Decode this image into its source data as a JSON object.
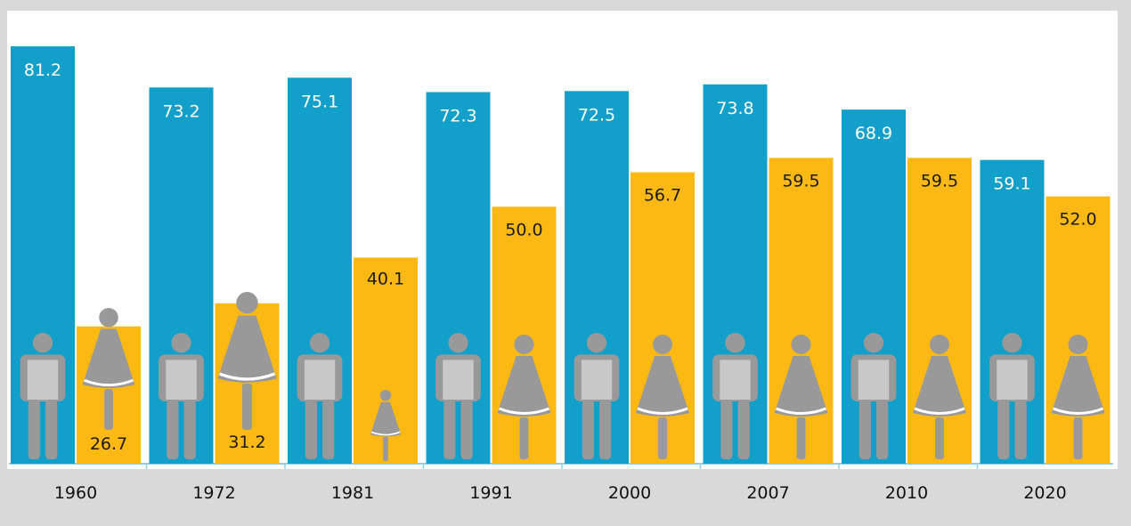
{
  "colors": {
    "male_bar": "#129fc9",
    "female_bar": "#fdb913",
    "male_label": "#ffffff",
    "female_label": "#1a1a1a",
    "icon": "#999999",
    "icon_male_fill": "#c8c8c8",
    "page_background": "#d9d9d9",
    "plot_background": "#ffffff",
    "axis": "#8fd0e6"
  },
  "icons": {
    "male": "male-figure-icon",
    "female": "female-figure-icon"
  },
  "chart_data": {
    "type": "bar",
    "categories": [
      "1960",
      "1972",
      "1981",
      "1991",
      "2000",
      "2007",
      "2010",
      "2020"
    ],
    "series": [
      {
        "values": [
          81.2,
          73.2,
          75.1,
          72.3,
          72.5,
          73.8,
          68.9,
          59.1
        ],
        "labels": [
          "81.2",
          "73.2",
          "75.1",
          "72.3",
          "72.5",
          "73.8",
          "68.9",
          "59.1"
        ]
      },
      {
        "values": [
          26.7,
          31.2,
          40.1,
          50.0,
          56.7,
          59.5,
          59.5,
          52.0
        ],
        "labels": [
          "26.7",
          "31.2",
          "40.1",
          "50.0",
          "56.7",
          "59.5",
          "59.5",
          "52.0"
        ]
      }
    ],
    "ylim": [
      0,
      86
    ],
    "grid": false,
    "legend": "none",
    "title": "",
    "xlabel": "",
    "ylabel": ""
  }
}
